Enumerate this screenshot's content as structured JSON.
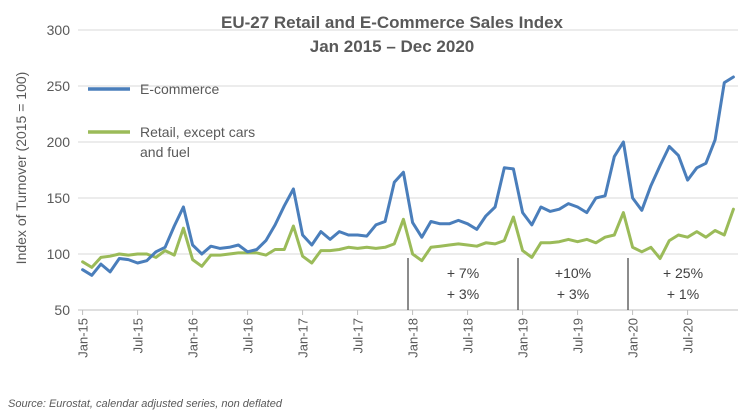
{
  "chart_data": {
    "type": "line",
    "title": "EU-27 Retail and E-Commerce Sales Index",
    "subtitle": "Jan 2015 – Dec 2020",
    "ylabel": "Index of Turnover (2015 = 100)",
    "xlabel": "",
    "ylim": [
      50,
      300
    ],
    "yticks": [
      50,
      100,
      150,
      200,
      250,
      300
    ],
    "grid": true,
    "legend_position": "top-left",
    "x_tick_labels": [
      "Jan-15",
      "Jul-15",
      "Jan-16",
      "Jul-16",
      "Jan-17",
      "Jul-17",
      "Jan-18",
      "Jul-18",
      "Jan-19",
      "Jul-19",
      "Jan-20",
      "Jul-20"
    ],
    "series": [
      {
        "name": "E-commerce",
        "color": "#4a7ebb",
        "values": [
          86,
          81,
          91,
          84,
          96,
          95,
          92,
          94,
          102,
          106,
          125,
          142,
          108,
          100,
          107,
          105,
          106,
          108,
          102,
          104,
          112,
          126,
          143,
          158,
          117,
          108,
          120,
          113,
          120,
          117,
          117,
          116,
          126,
          129,
          164,
          173,
          128,
          115,
          129,
          127,
          127,
          130,
          127,
          122,
          134,
          142,
          177,
          176,
          137,
          126,
          142,
          138,
          140,
          145,
          142,
          137,
          150,
          152,
          187,
          200,
          150,
          139,
          161,
          179,
          196,
          188,
          166,
          177,
          181,
          202,
          253,
          258
        ]
      },
      {
        "name": "Retail, except cars and fuel",
        "color": "#9bbb59",
        "values": [
          93,
          88,
          97,
          98,
          100,
          99,
          100,
          100,
          97,
          103,
          99,
          123,
          95,
          89,
          99,
          99,
          100,
          101,
          101,
          101,
          99,
          104,
          104,
          125,
          98,
          92,
          103,
          103,
          104,
          106,
          105,
          106,
          105,
          106,
          109,
          131,
          100,
          94,
          106,
          107,
          108,
          109,
          108,
          107,
          110,
          109,
          112,
          133,
          103,
          97,
          110,
          110,
          111,
          113,
          111,
          113,
          110,
          115,
          117,
          137,
          106,
          102,
          106,
          96,
          112,
          117,
          115,
          120,
          115,
          121,
          117,
          140
        ]
      }
    ],
    "annotations": [
      {
        "line1": "+ 7%",
        "line2": "+ 3%"
      },
      {
        "line1": "+10%",
        "line2": "+ 3%"
      },
      {
        "line1": "+ 25%",
        "line2": "+ 1%"
      }
    ],
    "source": "Source: Eurostat, calendar adjusted series, non deflated"
  }
}
